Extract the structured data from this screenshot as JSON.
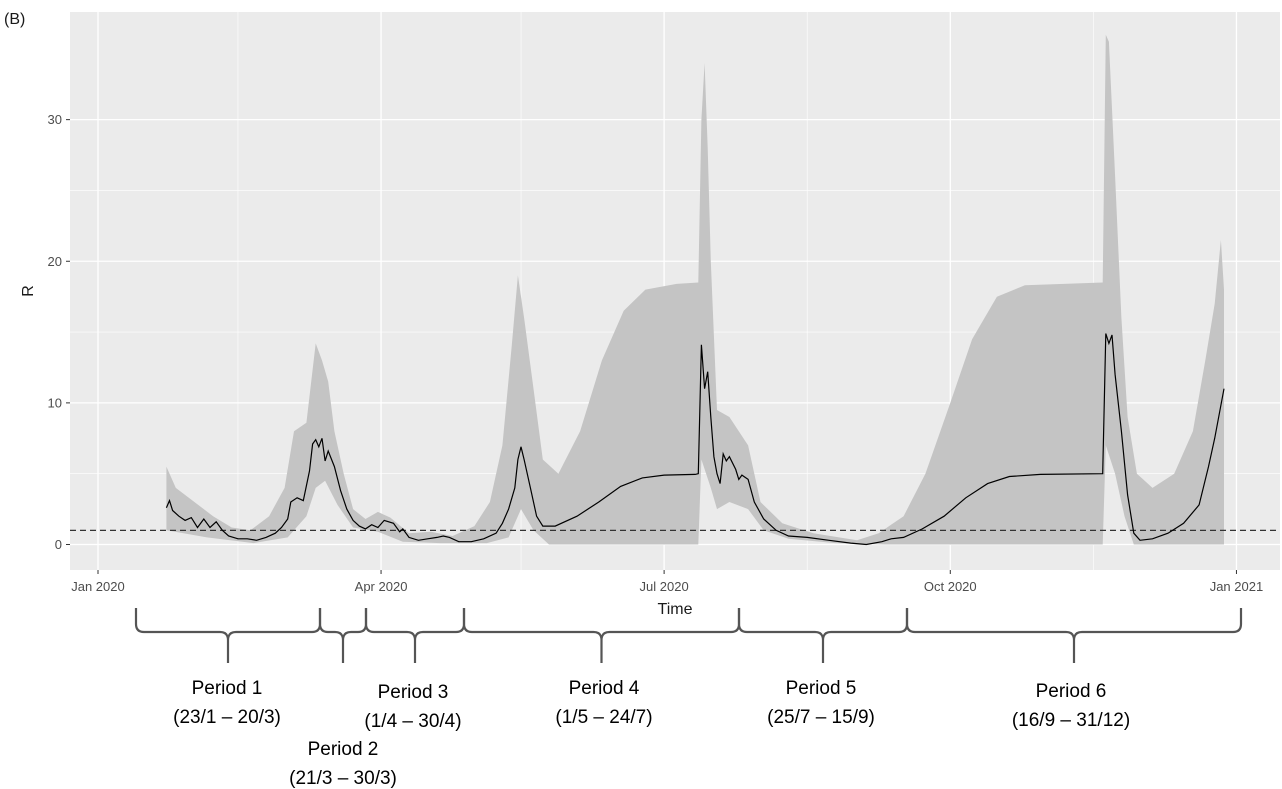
{
  "panel_label": "(B)",
  "chart_data": {
    "type": "area",
    "xlabel": "Time",
    "ylabel": "R",
    "x_ticks": [
      {
        "date": "2020-01-01",
        "label": "Jan 2020"
      },
      {
        "date": "2020-04-01",
        "label": "Apr 2020"
      },
      {
        "date": "2020-07-01",
        "label": "Jul 2020"
      },
      {
        "date": "2020-10-01",
        "label": "Oct 2020"
      },
      {
        "date": "2021-01-01",
        "label": "Jan 2021"
      }
    ],
    "y_ticks": [
      0,
      10,
      20,
      30
    ],
    "xlim": [
      "2019-12-23",
      "2021-01-15"
    ],
    "ylim": [
      -1.8,
      37.6
    ],
    "grid": true,
    "reference_line": 1,
    "series": [
      {
        "role": "estimate",
        "points": [
          [
            "2020-01-23",
            2.6
          ],
          [
            "2020-01-24",
            3.1
          ],
          [
            "2020-01-25",
            2.4
          ],
          [
            "2020-01-27",
            2.0
          ],
          [
            "2020-01-29",
            1.7
          ],
          [
            "2020-01-31",
            1.9
          ],
          [
            "2020-02-02",
            1.2
          ],
          [
            "2020-02-04",
            1.8
          ],
          [
            "2020-02-06",
            1.2
          ],
          [
            "2020-02-08",
            1.6
          ],
          [
            "2020-02-10",
            1.0
          ],
          [
            "2020-02-12",
            0.6
          ],
          [
            "2020-02-15",
            0.4
          ],
          [
            "2020-02-18",
            0.4
          ],
          [
            "2020-02-21",
            0.3
          ],
          [
            "2020-02-24",
            0.5
          ],
          [
            "2020-02-27",
            0.8
          ],
          [
            "2020-02-29",
            1.2
          ],
          [
            "2020-03-02",
            1.8
          ],
          [
            "2020-03-03",
            3.0
          ],
          [
            "2020-03-05",
            3.3
          ],
          [
            "2020-03-07",
            3.1
          ],
          [
            "2020-03-09",
            5.2
          ],
          [
            "2020-03-10",
            7.1
          ],
          [
            "2020-03-11",
            7.4
          ],
          [
            "2020-03-12",
            6.9
          ],
          [
            "2020-03-13",
            7.5
          ],
          [
            "2020-03-14",
            5.9
          ],
          [
            "2020-03-15",
            6.6
          ],
          [
            "2020-03-17",
            5.5
          ],
          [
            "2020-03-19",
            3.8
          ],
          [
            "2020-03-21",
            2.5
          ],
          [
            "2020-03-23",
            1.7
          ],
          [
            "2020-03-25",
            1.3
          ],
          [
            "2020-03-27",
            1.1
          ],
          [
            "2020-03-29",
            1.4
          ],
          [
            "2020-03-31",
            1.2
          ],
          [
            "2020-04-02",
            1.7
          ],
          [
            "2020-04-05",
            1.5
          ],
          [
            "2020-04-07",
            0.9
          ],
          [
            "2020-04-08",
            1.1
          ],
          [
            "2020-04-10",
            0.5
          ],
          [
            "2020-04-13",
            0.3
          ],
          [
            "2020-04-16",
            0.4
          ],
          [
            "2020-04-19",
            0.5
          ],
          [
            "2020-04-21",
            0.6
          ],
          [
            "2020-04-23",
            0.5
          ],
          [
            "2020-04-26",
            0.2
          ],
          [
            "2020-04-30",
            0.2
          ],
          [
            "2020-05-04",
            0.4
          ],
          [
            "2020-05-08",
            0.8
          ],
          [
            "2020-05-10",
            1.5
          ],
          [
            "2020-05-12",
            2.5
          ],
          [
            "2020-05-14",
            4.0
          ],
          [
            "2020-05-15",
            6.0
          ],
          [
            "2020-05-16",
            6.9
          ],
          [
            "2020-05-17",
            6.0
          ],
          [
            "2020-05-19",
            4.0
          ],
          [
            "2020-05-21",
            2.0
          ],
          [
            "2020-05-23",
            1.3
          ],
          [
            "2020-05-27",
            1.3
          ],
          [
            "2020-06-03",
            2.0
          ],
          [
            "2020-06-10",
            3.0
          ],
          [
            "2020-06-17",
            4.1
          ],
          [
            "2020-06-24",
            4.7
          ],
          [
            "2020-07-01",
            4.9
          ],
          [
            "2020-07-11",
            4.95
          ],
          [
            "2020-07-12",
            5.0
          ],
          [
            "2020-07-13",
            14.1
          ],
          [
            "2020-07-14",
            11.0
          ],
          [
            "2020-07-15",
            12.2
          ],
          [
            "2020-07-16",
            9.0
          ],
          [
            "2020-07-17",
            6.2
          ],
          [
            "2020-07-18",
            5.0
          ],
          [
            "2020-07-19",
            4.3
          ],
          [
            "2020-07-20",
            6.4
          ],
          [
            "2020-07-21",
            5.9
          ],
          [
            "2020-07-22",
            6.2
          ],
          [
            "2020-07-24",
            5.3
          ],
          [
            "2020-07-25",
            4.6
          ],
          [
            "2020-07-26",
            4.9
          ],
          [
            "2020-07-28",
            4.6
          ],
          [
            "2020-07-30",
            3.0
          ],
          [
            "2020-08-02",
            1.8
          ],
          [
            "2020-08-06",
            1.0
          ],
          [
            "2020-08-10",
            0.6
          ],
          [
            "2020-08-16",
            0.5
          ],
          [
            "2020-08-23",
            0.3
          ],
          [
            "2020-08-30",
            0.1
          ],
          [
            "2020-09-04",
            0.0
          ],
          [
            "2020-09-09",
            0.2
          ],
          [
            "2020-09-12",
            0.4
          ],
          [
            "2020-09-16",
            0.5
          ],
          [
            "2020-09-22",
            1.1
          ],
          [
            "2020-09-29",
            2.0
          ],
          [
            "2020-10-06",
            3.3
          ],
          [
            "2020-10-13",
            4.3
          ],
          [
            "2020-10-20",
            4.8
          ],
          [
            "2020-10-30",
            4.95
          ],
          [
            "2020-11-19",
            5.0
          ],
          [
            "2020-11-20",
            14.9
          ],
          [
            "2020-11-21",
            14.2
          ],
          [
            "2020-11-22",
            14.8
          ],
          [
            "2020-11-23",
            12.0
          ],
          [
            "2020-11-25",
            8.0
          ],
          [
            "2020-11-27",
            3.5
          ],
          [
            "2020-11-29",
            0.8
          ],
          [
            "2020-12-01",
            0.3
          ],
          [
            "2020-12-05",
            0.4
          ],
          [
            "2020-12-10",
            0.8
          ],
          [
            "2020-12-15",
            1.5
          ],
          [
            "2020-12-20",
            2.8
          ],
          [
            "2020-12-23",
            5.5
          ],
          [
            "2020-12-25",
            7.5
          ],
          [
            "2020-12-28",
            11.0
          ]
        ]
      },
      {
        "role": "interval",
        "upper": [
          [
            "2020-01-23",
            5.5
          ],
          [
            "2020-01-26",
            4.0
          ],
          [
            "2020-02-01",
            3.0
          ],
          [
            "2020-02-07",
            2.0
          ],
          [
            "2020-02-13",
            1.2
          ],
          [
            "2020-02-19",
            1.0
          ],
          [
            "2020-02-25",
            2.0
          ],
          [
            "2020-03-01",
            4.0
          ],
          [
            "2020-03-04",
            8.0
          ],
          [
            "2020-03-08",
            8.6
          ],
          [
            "2020-03-11",
            14.2
          ],
          [
            "2020-03-13",
            13.0
          ],
          [
            "2020-03-15",
            11.5
          ],
          [
            "2020-03-17",
            8.0
          ],
          [
            "2020-03-20",
            5.0
          ],
          [
            "2020-03-23",
            2.5
          ],
          [
            "2020-03-27",
            1.8
          ],
          [
            "2020-03-31",
            2.3
          ],
          [
            "2020-04-04",
            1.9
          ],
          [
            "2020-04-10",
            0.8
          ],
          [
            "2020-04-17",
            0.9
          ],
          [
            "2020-04-24",
            0.6
          ],
          [
            "2020-05-01",
            1.3
          ],
          [
            "2020-05-06",
            3.0
          ],
          [
            "2020-05-10",
            7.0
          ],
          [
            "2020-05-13",
            14.0
          ],
          [
            "2020-05-15",
            19.0
          ],
          [
            "2020-05-17",
            16.0
          ],
          [
            "2020-05-20",
            11.0
          ],
          [
            "2020-05-23",
            6.0
          ],
          [
            "2020-05-28",
            5.0
          ],
          [
            "2020-06-04",
            8.0
          ],
          [
            "2020-06-11",
            13.0
          ],
          [
            "2020-06-18",
            16.5
          ],
          [
            "2020-06-25",
            18.0
          ],
          [
            "2020-07-05",
            18.4
          ],
          [
            "2020-07-12",
            18.5
          ],
          [
            "2020-07-13",
            30.0
          ],
          [
            "2020-07-14",
            34.0
          ],
          [
            "2020-07-15",
            28.0
          ],
          [
            "2020-07-16",
            20.0
          ],
          [
            "2020-07-18",
            9.5
          ],
          [
            "2020-07-22",
            9.0
          ],
          [
            "2020-07-25",
            8.0
          ],
          [
            "2020-07-28",
            7.0
          ],
          [
            "2020-08-01",
            3.0
          ],
          [
            "2020-08-08",
            1.5
          ],
          [
            "2020-08-18",
            0.8
          ],
          [
            "2020-09-01",
            0.3
          ],
          [
            "2020-09-08",
            0.8
          ],
          [
            "2020-09-16",
            2.0
          ],
          [
            "2020-09-23",
            5.0
          ],
          [
            "2020-10-01",
            10.0
          ],
          [
            "2020-10-08",
            14.5
          ],
          [
            "2020-10-16",
            17.5
          ],
          [
            "2020-10-25",
            18.3
          ],
          [
            "2020-11-19",
            18.5
          ],
          [
            "2020-11-20",
            36.0
          ],
          [
            "2020-11-21",
            35.5
          ],
          [
            "2020-11-23",
            26.0
          ],
          [
            "2020-11-25",
            16.0
          ],
          [
            "2020-11-27",
            9.0
          ],
          [
            "2020-11-30",
            5.0
          ],
          [
            "2020-12-05",
            4.0
          ],
          [
            "2020-12-12",
            5.0
          ],
          [
            "2020-12-18",
            8.0
          ],
          [
            "2020-12-22",
            13.0
          ],
          [
            "2020-12-25",
            17.0
          ],
          [
            "2020-12-27",
            21.5
          ],
          [
            "2020-12-28",
            18.0
          ]
        ],
        "lower": [
          [
            "2020-01-23",
            1.0
          ],
          [
            "2020-02-05",
            0.5
          ],
          [
            "2020-02-20",
            0.1
          ],
          [
            "2020-03-02",
            0.5
          ],
          [
            "2020-03-08",
            2.0
          ],
          [
            "2020-03-11",
            4.0
          ],
          [
            "2020-03-14",
            4.5
          ],
          [
            "2020-03-18",
            2.8
          ],
          [
            "2020-03-23",
            1.2
          ],
          [
            "2020-03-31",
            0.9
          ],
          [
            "2020-04-08",
            0.2
          ],
          [
            "2020-04-20",
            0.1
          ],
          [
            "2020-05-05",
            0.1
          ],
          [
            "2020-05-12",
            0.5
          ],
          [
            "2020-05-16",
            2.5
          ],
          [
            "2020-05-20",
            1.0
          ],
          [
            "2020-05-25",
            0.0
          ],
          [
            "2020-07-12",
            0.0
          ],
          [
            "2020-07-13",
            6.0
          ],
          [
            "2020-07-16",
            4.0
          ],
          [
            "2020-07-18",
            2.5
          ],
          [
            "2020-07-22",
            3.0
          ],
          [
            "2020-07-28",
            2.5
          ],
          [
            "2020-08-02",
            1.0
          ],
          [
            "2020-08-10",
            0.4
          ],
          [
            "2020-08-25",
            0.1
          ],
          [
            "2020-09-10",
            0.0
          ],
          [
            "2020-11-19",
            0.0
          ],
          [
            "2020-11-20",
            7.0
          ],
          [
            "2020-11-23",
            5.0
          ],
          [
            "2020-11-26",
            2.0
          ],
          [
            "2020-11-29",
            0.0
          ],
          [
            "2020-12-28",
            0.0
          ]
        ]
      }
    ]
  },
  "periods": [
    {
      "label": "Period 1",
      "range": "(23/1 – 20/3)",
      "start": "2020-01-23",
      "end": "2020-03-20"
    },
    {
      "label": "Period 2",
      "range": "(21/3 – 30/3)",
      "start": "2020-03-21",
      "end": "2020-03-30"
    },
    {
      "label": "Period 3",
      "range": "(1/4 – 30/4)",
      "start": "2020-04-01",
      "end": "2020-04-30"
    },
    {
      "label": "Period 4",
      "range": "(1/5 – 24/7)",
      "start": "2020-05-01",
      "end": "2020-07-24"
    },
    {
      "label": "Period 5",
      "range": "(25/7 – 15/9)",
      "start": "2020-07-25",
      "end": "2020-09-15"
    },
    {
      "label": "Period 6",
      "range": "(16/9 – 31/12)",
      "start": "2020-09-16",
      "end": "2020-12-31"
    }
  ],
  "colors": {
    "panel_background": "#ebebeb",
    "grid": "#ffffff",
    "ribbon": "#c4c4c4",
    "estimate_line": "#000000",
    "reference_line": "#333333",
    "brace": "#555555"
  }
}
